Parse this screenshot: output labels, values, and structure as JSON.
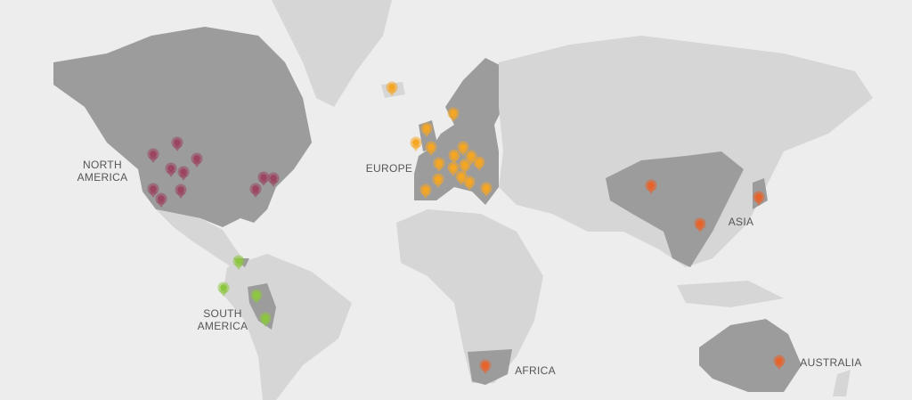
{
  "map": {
    "background": "#ededed",
    "land_color": "#d6d6d6",
    "highlight_color": "#9c9c9c",
    "regions": [
      {
        "key": "na",
        "label_lines": [
          "NORTH",
          "AMERICA"
        ],
        "pin_color": "#9b4560"
      },
      {
        "key": "eu",
        "label_lines": [
          "EUROPE"
        ],
        "pin_color": "#f5a623"
      },
      {
        "key": "sa",
        "label_lines": [
          "SOUTH",
          "AMERICA"
        ],
        "pin_color": "#8dc63f"
      },
      {
        "key": "as",
        "label_lines": [
          "ASIA"
        ],
        "pin_color": "#e8632a"
      },
      {
        "key": "af",
        "label_lines": [
          "AFRICA"
        ],
        "pin_color": "#e8632a"
      },
      {
        "key": "au",
        "label_lines": [
          "AUSTRALIA"
        ],
        "pin_color": "#e8632a"
      }
    ]
  }
}
